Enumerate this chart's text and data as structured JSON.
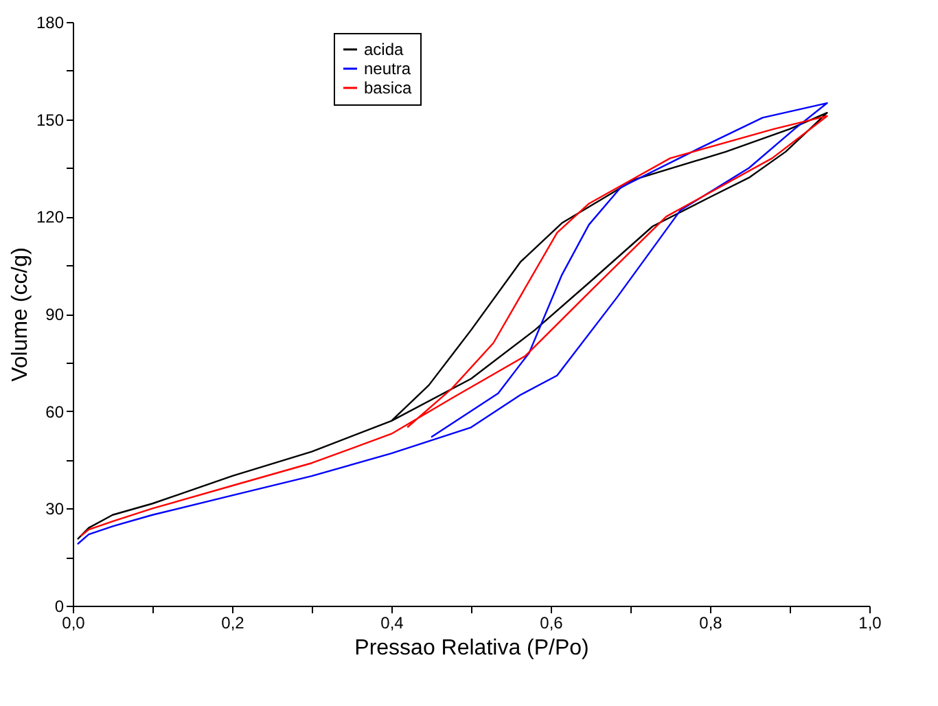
{
  "chart_data": {
    "type": "line",
    "xlabel": "Pressao Relativa (P/Po)",
    "ylabel": "Volume (cc/g)",
    "xlim": [
      0,
      1
    ],
    "ylim": [
      0,
      180
    ],
    "xticks": [
      {
        "value": 0,
        "label": "0,0"
      },
      {
        "value": 0.1,
        "label": null
      },
      {
        "value": 0.2,
        "label": "0,2"
      },
      {
        "value": 0.3,
        "label": null
      },
      {
        "value": 0.4,
        "label": "0,4"
      },
      {
        "value": 0.5,
        "label": null
      },
      {
        "value": 0.6,
        "label": "0,6"
      },
      {
        "value": 0.7,
        "label": null
      },
      {
        "value": 0.8,
        "label": "0,8"
      },
      {
        "value": 0.9,
        "label": null
      },
      {
        "value": 1,
        "label": "1,0"
      }
    ],
    "yticks": [
      0,
      {
        "value": 15,
        "label": null
      },
      30,
      {
        "value": 45,
        "label": null
      },
      60,
      {
        "value": 75,
        "label": null
      },
      90,
      {
        "value": 105,
        "label": null
      },
      120,
      {
        "value": 135,
        "label": null
      },
      150,
      {
        "value": 165,
        "label": null
      },
      180
    ],
    "grid": false,
    "legend": "top",
    "marker": "none",
    "line_style": "solid",
    "series": [
      {
        "name": "acida",
        "color": "#000000",
        "x": [
          0.006,
          0.02,
          0.05,
          0.1,
          0.2,
          0.3,
          0.4,
          0.5,
          0.58,
          0.65,
          0.728,
          0.8,
          0.849,
          0.895,
          0.947,
          0.9,
          0.82,
          0.706,
          0.614,
          0.562,
          0.5,
          0.447,
          0.4
        ],
        "values": [
          20.5,
          24,
          28,
          31.5,
          40,
          47.5,
          57,
          70,
          85,
          100,
          117,
          126,
          132,
          140,
          152,
          147,
          140,
          131.5,
          118,
          106,
          85,
          68,
          57
        ]
      },
      {
        "name": "neutra",
        "color": "#0000ff",
        "x": [
          0.006,
          0.02,
          0.05,
          0.1,
          0.2,
          0.3,
          0.4,
          0.5,
          0.562,
          0.608,
          0.683,
          0.763,
          0.849,
          0.906,
          0.947,
          0.866,
          0.786,
          0.688,
          0.648,
          0.614,
          0.573,
          0.534,
          0.45
        ],
        "values": [
          19,
          22,
          24.5,
          28,
          34,
          40,
          47,
          55,
          65,
          71,
          95,
          122,
          135,
          147,
          155,
          150.5,
          141,
          129,
          117.5,
          102,
          78,
          65.5,
          52
        ]
      },
      {
        "name": "basica",
        "color": "#ff0000",
        "x": [
          0.01,
          0.02,
          0.05,
          0.1,
          0.2,
          0.3,
          0.4,
          0.476,
          0.568,
          0.654,
          0.745,
          0.878,
          0.947,
          0.88,
          0.75,
          0.648,
          0.608,
          0.528,
          0.476,
          0.42
        ],
        "values": [
          21.5,
          23.5,
          26,
          30,
          37,
          44,
          53,
          64,
          77,
          98,
          120,
          138,
          151,
          147,
          138,
          124,
          115,
          81,
          67,
          55
        ]
      }
    ]
  }
}
